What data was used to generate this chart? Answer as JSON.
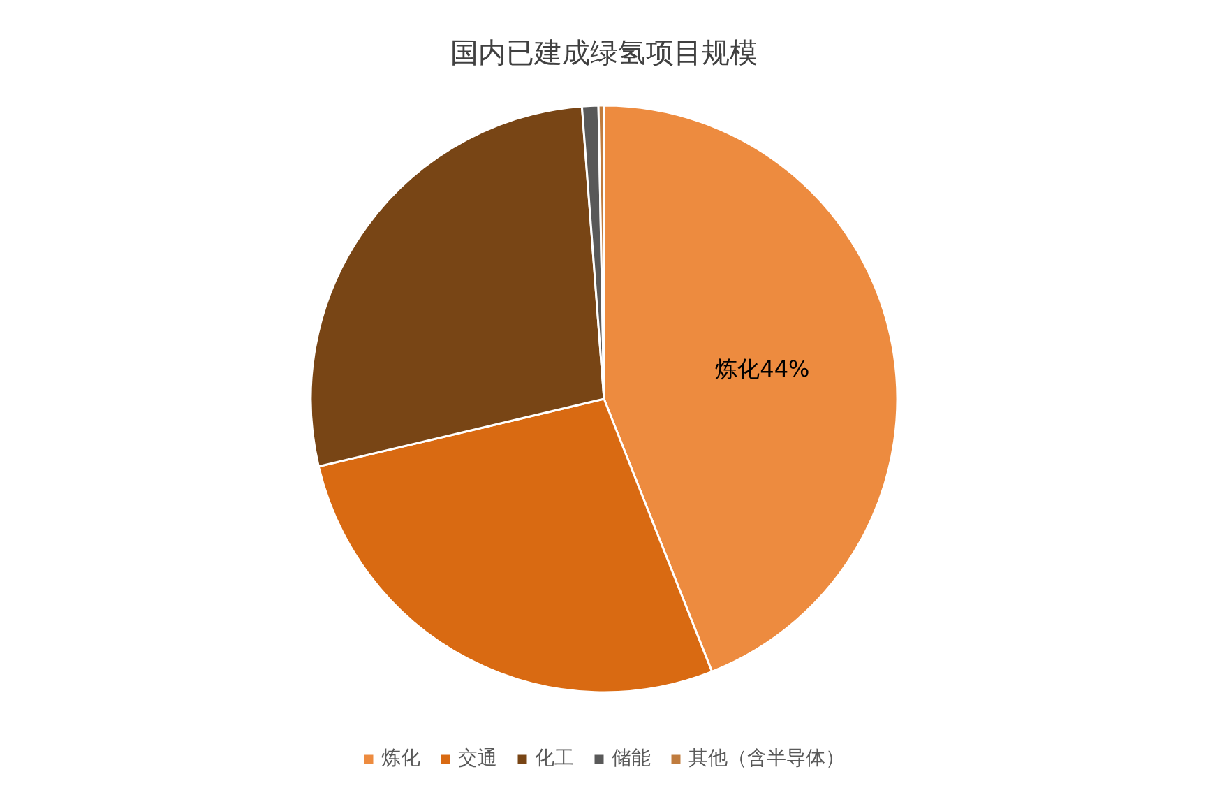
{
  "chart_data": {
    "type": "pie",
    "title": "国内已建成绿氢项目规模",
    "categories": [
      "炼化",
      "交通",
      "化工",
      "储能",
      "其他（含半导体）"
    ],
    "values": [
      44,
      27.3,
      27.5,
      0.9,
      0.3
    ],
    "colors": [
      "#ed8b3f",
      "#d96a12",
      "#784515",
      "#595959",
      "#c07c3e"
    ],
    "value_labels": [
      "炼化44%",
      null,
      null,
      null,
      null
    ],
    "legend": "bottom"
  }
}
